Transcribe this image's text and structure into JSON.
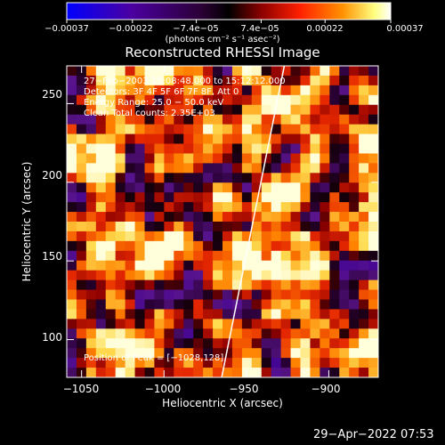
{
  "chart_data": {
    "type": "heatmap",
    "title": "Reconstructed RHESSI Image",
    "xlabel": "Heliocentric X (arcsec)",
    "ylabel": "Heliocentric Y (arcsec)",
    "xlim": [
      -1059,
      -870
    ],
    "ylim": [
      76,
      274
    ],
    "xticks": [
      -1050,
      -1000,
      -950,
      -900
    ],
    "xtick_labels": [
      "−1050",
      "−1000",
      "−950",
      "−900"
    ],
    "yticks": [
      100,
      150,
      200,
      250
    ],
    "ytick_labels": [
      "100",
      "150",
      "200",
      "250"
    ],
    "colorbar": {
      "range": [
        -0.00037,
        0.00037
      ],
      "ticks": [
        -0.00037,
        -0.00022,
        -7.4e-05,
        7.4e-05,
        0.00022,
        0.00037
      ],
      "tick_labels": [
        "−0.00037",
        "−0.00022",
        "−7.4e−05",
        "7.4e−05",
        "0.00022",
        "0.00037"
      ],
      "unit_label": "(photons cm⁻² s⁻¹ asec⁻²)",
      "colormap": [
        "#0000ff",
        "#4b00a0",
        "#2a0033",
        "#000000",
        "#8b0000",
        "#ff3000",
        "#ff9000",
        "#ffff80",
        "#ffffff"
      ]
    },
    "annotations": [
      "27−Feb−2003 15:08:48.000 to 15:12:12.000",
      "Detectors: 3F 4F 5F 6F 7F 8F, Att 0",
      "Energy Range: 25.0 − 50.0 keV",
      "Clean    Total counts: 2.35E+03",
      "Position of Peak = [−1028,128]"
    ],
    "limb_line": [
      [
        -965,
        76
      ],
      [
        -927,
        274
      ]
    ],
    "peak": [
      -1028,
      128
    ]
  },
  "footer": {
    "timestamp": "29−Apr−2022 07:53"
  }
}
